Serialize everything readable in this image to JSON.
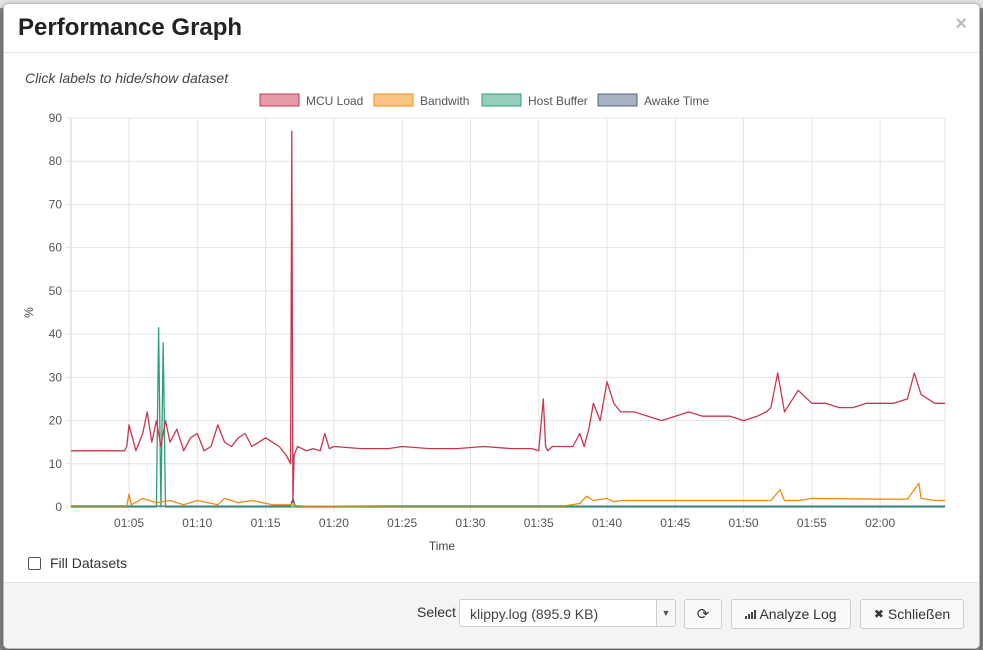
{
  "modal": {
    "title": "Performance Graph",
    "close_glyph": "×",
    "hint": "Click labels to hide/show dataset",
    "fill_datasets_label": "Fill Datasets",
    "fill_checked": false
  },
  "footer": {
    "select_label": "Select",
    "select_value": "klippy.log (895.9 KB)",
    "refresh_icon": "refresh-icon",
    "analyze_label": "Analyze Log",
    "analyze_icon": "signal-bars-icon",
    "close_label": "Schließen",
    "close_icon": "x-icon"
  },
  "chart_data": {
    "type": "line",
    "ylabel": "%",
    "xlabel": "Time",
    "ylim": [
      0,
      90
    ],
    "yticks": [
      0,
      10,
      20,
      30,
      40,
      50,
      60,
      70,
      80,
      90
    ],
    "xlim": [
      "01:00:45",
      "02:04:45"
    ],
    "xticks": [
      "01:05",
      "01:10",
      "01:15",
      "01:20",
      "01:25",
      "01:30",
      "01:35",
      "01:40",
      "01:45",
      "01:50",
      "01:55",
      "02:00"
    ],
    "grid": true,
    "legend": "top-center",
    "series": [
      {
        "name": "MCU Load",
        "color": "#c9374f",
        "x": [
          "01:00:45",
          "01:04:30",
          "01:04:40",
          "01:04:50",
          "01:05:00",
          "01:05:30",
          "01:06:00",
          "01:06:20",
          "01:06:40",
          "01:07:00",
          "01:07:20",
          "01:07:40",
          "01:08:00",
          "01:08:30",
          "01:09:00",
          "01:09:30",
          "01:10:00",
          "01:10:30",
          "01:11:00",
          "01:11:30",
          "01:12:00",
          "01:12:30",
          "01:13:00",
          "01:13:30",
          "01:14:00",
          "01:14:30",
          "01:15:00",
          "01:15:30",
          "01:16:00",
          "01:16:30",
          "01:16:50",
          "01:16:55",
          "01:17:00",
          "01:17:05",
          "01:17:20",
          "01:18:00",
          "01:18:30",
          "01:19:00",
          "01:19:20",
          "01:19:40",
          "01:20:00",
          "01:22:00",
          "01:24:00",
          "01:25:00",
          "01:27:00",
          "01:29:00",
          "01:31:00",
          "01:33:00",
          "01:34:30",
          "01:35:00",
          "01:35:20",
          "01:35:30",
          "01:35:40",
          "01:36:00",
          "01:37:00",
          "01:37:30",
          "01:38:00",
          "01:38:20",
          "01:38:40",
          "01:39:00",
          "01:39:30",
          "01:40:00",
          "01:40:30",
          "01:41:00",
          "01:42:00",
          "01:43:00",
          "01:44:00",
          "01:45:00",
          "01:46:00",
          "01:47:00",
          "01:48:00",
          "01:49:00",
          "01:50:00",
          "01:51:00",
          "01:51:40",
          "01:52:00",
          "01:52:30",
          "01:53:00",
          "01:54:00",
          "01:55:00",
          "01:56:00",
          "01:57:00",
          "01:58:00",
          "01:59:00",
          "02:00:00",
          "02:01:00",
          "02:02:00",
          "02:02:30",
          "02:03:00",
          "02:03:30",
          "02:04:00",
          "02:04:45"
        ],
        "values": [
          13,
          13,
          13,
          14,
          19,
          13,
          17,
          22,
          15,
          20,
          14,
          20,
          15,
          18,
          13,
          16,
          17,
          13,
          14,
          19,
          15,
          14,
          16,
          17,
          14,
          15,
          16,
          15,
          14,
          12,
          10,
          87,
          1,
          12,
          14,
          13,
          13.5,
          13,
          17,
          13.5,
          14,
          13.5,
          13.5,
          14,
          13.5,
          13.5,
          14,
          13.5,
          13.5,
          13,
          25,
          14,
          13,
          14,
          14,
          14,
          17,
          14,
          18,
          24,
          20,
          29,
          24,
          22,
          22,
          21,
          20,
          21,
          22,
          21,
          21,
          21,
          20,
          21,
          22,
          23,
          31,
          22,
          27,
          24,
          24,
          23,
          23,
          24,
          24,
          24,
          25,
          31,
          26,
          25,
          24,
          24
        ]
      },
      {
        "name": "Bandwith",
        "color": "#f58a0e",
        "x": [
          "01:00:45",
          "01:04:50",
          "01:05:00",
          "01:05:10",
          "01:06:00",
          "01:07:00",
          "01:08:00",
          "01:09:00",
          "01:10:00",
          "01:11:30",
          "01:12:00",
          "01:13:00",
          "01:14:00",
          "01:15:30",
          "01:16:50",
          "01:17:20",
          "01:18:00",
          "01:20:00",
          "01:25:00",
          "01:30:00",
          "01:35:00",
          "01:37:00",
          "01:38:00",
          "01:38:30",
          "01:39:00",
          "01:40:00",
          "01:40:30",
          "01:41:00",
          "01:45:00",
          "01:50:00",
          "01:52:00",
          "01:52:40",
          "01:53:00",
          "01:54:00",
          "01:55:00",
          "02:00:00",
          "02:02:00",
          "02:02:50",
          "02:03:00",
          "02:04:00",
          "02:04:45"
        ],
        "values": [
          0.3,
          0.3,
          3,
          0.5,
          2,
          1,
          1.5,
          0.5,
          1.5,
          0.5,
          2,
          1,
          1.5,
          0.5,
          0.5,
          0.3,
          0.2,
          0.2,
          0.3,
          0.3,
          0.3,
          0.3,
          0.8,
          2.5,
          1.5,
          2,
          1.2,
          1.5,
          1.5,
          1.5,
          1.5,
          4,
          1.5,
          1.5,
          2,
          1.8,
          1.8,
          5.5,
          2,
          1.5,
          1.5
        ]
      },
      {
        "name": "Host Buffer",
        "color": "#2f9e77",
        "x": [
          "01:00:45",
          "01:07:00",
          "01:07:10",
          "01:07:20",
          "01:07:30",
          "01:07:40",
          "01:08:00",
          "02:04:45"
        ],
        "values": [
          0,
          0,
          41.5,
          0,
          38,
          0,
          0,
          0
        ]
      },
      {
        "name": "Awake Time",
        "color": "#4e6680",
        "x": [
          "01:00:45",
          "01:16:50",
          "01:17:00",
          "01:17:10",
          "02:04:45"
        ],
        "values": [
          0.2,
          0.2,
          2,
          0.2,
          0.2
        ]
      }
    ]
  }
}
